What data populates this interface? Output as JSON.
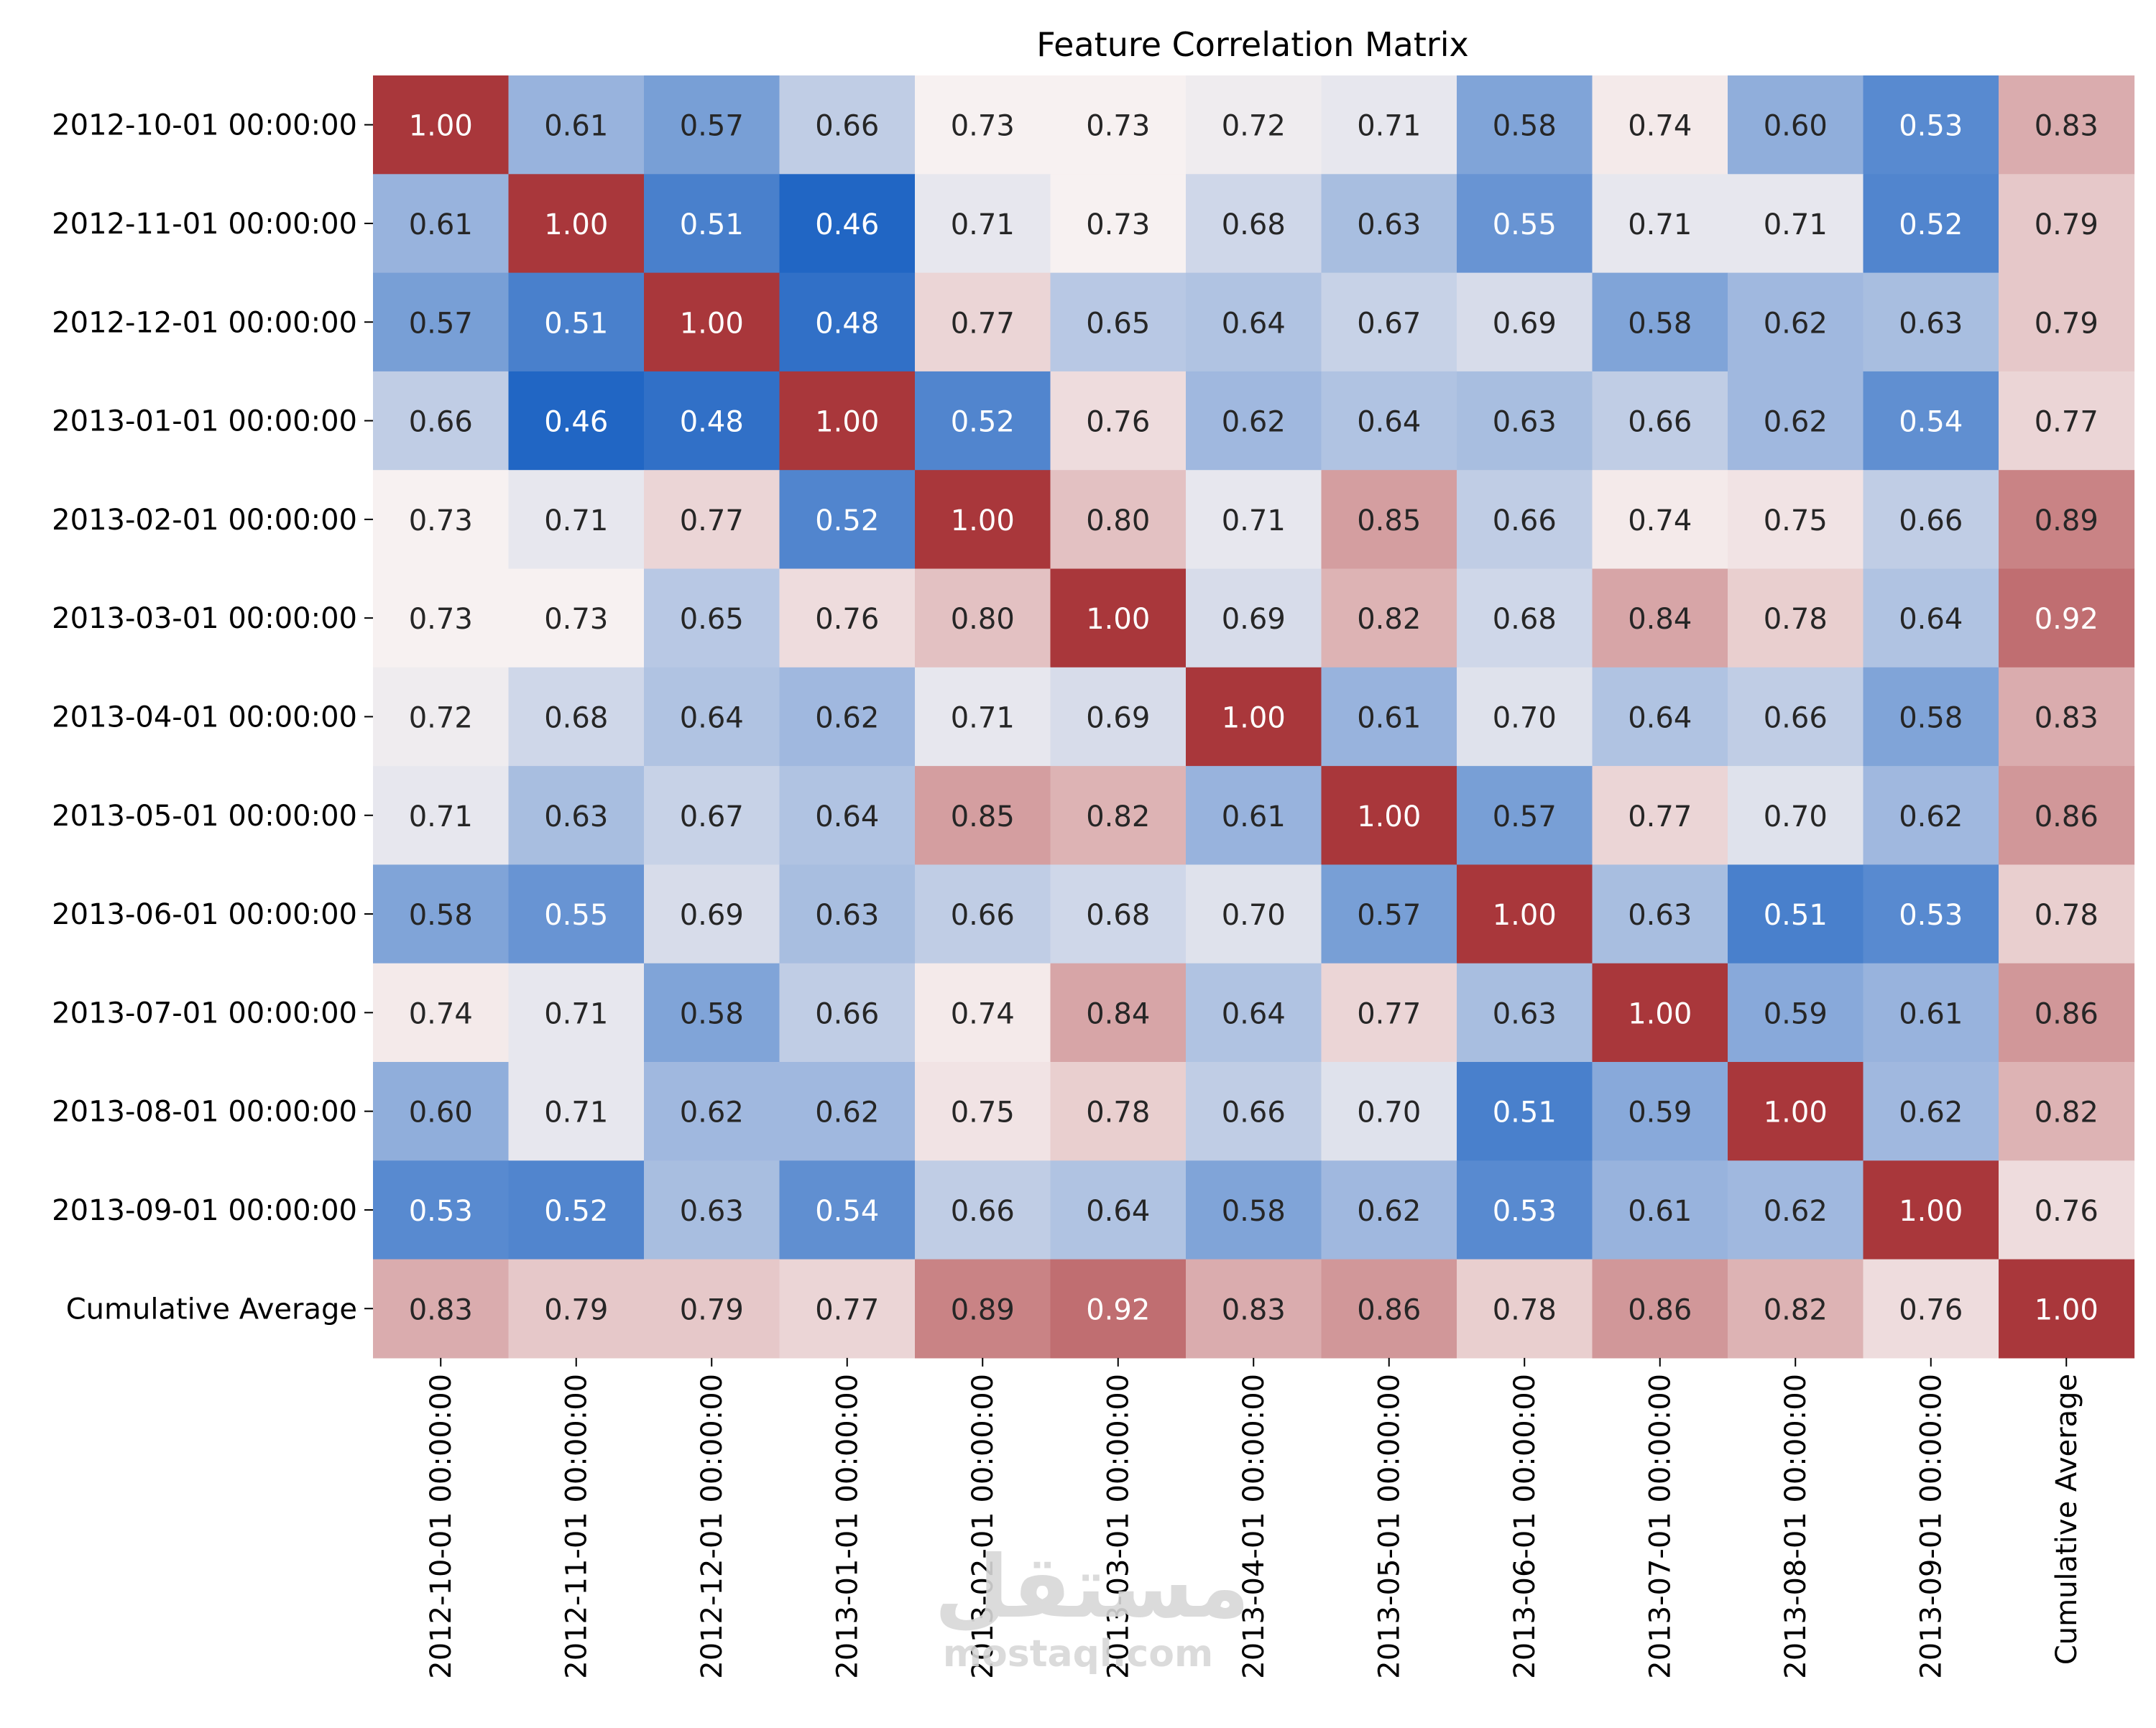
{
  "chart_data": {
    "type": "heatmap",
    "title": "Feature Correlation Matrix",
    "xlabel": "",
    "ylabel": "",
    "labels": [
      "2012-10-01 00:00:00",
      "2012-11-01 00:00:00",
      "2012-12-01 00:00:00",
      "2013-01-01 00:00:00",
      "2013-02-01 00:00:00",
      "2013-03-01 00:00:00",
      "2013-04-01 00:00:00",
      "2013-05-01 00:00:00",
      "2013-06-01 00:00:00",
      "2013-07-01 00:00:00",
      "2013-08-01 00:00:00",
      "2013-09-01 00:00:00",
      "Cumulative Average"
    ],
    "values": [
      [
        1.0,
        0.61,
        0.57,
        0.66,
        0.73,
        0.73,
        0.72,
        0.71,
        0.58,
        0.74,
        0.6,
        0.53,
        0.83
      ],
      [
        0.61,
        1.0,
        0.51,
        0.46,
        0.71,
        0.73,
        0.68,
        0.63,
        0.55,
        0.71,
        0.71,
        0.52,
        0.79
      ],
      [
        0.57,
        0.51,
        1.0,
        0.48,
        0.77,
        0.65,
        0.64,
        0.67,
        0.69,
        0.58,
        0.62,
        0.63,
        0.79
      ],
      [
        0.66,
        0.46,
        0.48,
        1.0,
        0.52,
        0.76,
        0.62,
        0.64,
        0.63,
        0.66,
        0.62,
        0.54,
        0.77
      ],
      [
        0.73,
        0.71,
        0.77,
        0.52,
        1.0,
        0.8,
        0.71,
        0.85,
        0.66,
        0.74,
        0.75,
        0.66,
        0.89
      ],
      [
        0.73,
        0.73,
        0.65,
        0.76,
        0.8,
        1.0,
        0.69,
        0.82,
        0.68,
        0.84,
        0.78,
        0.64,
        0.92
      ],
      [
        0.72,
        0.68,
        0.64,
        0.62,
        0.71,
        0.69,
        1.0,
        0.61,
        0.7,
        0.64,
        0.66,
        0.58,
        0.83
      ],
      [
        0.71,
        0.63,
        0.67,
        0.64,
        0.85,
        0.82,
        0.61,
        1.0,
        0.57,
        0.77,
        0.7,
        0.62,
        0.86
      ],
      [
        0.58,
        0.55,
        0.69,
        0.63,
        0.66,
        0.68,
        0.7,
        0.57,
        1.0,
        0.63,
        0.51,
        0.53,
        0.78
      ],
      [
        0.74,
        0.71,
        0.58,
        0.66,
        0.74,
        0.84,
        0.64,
        0.77,
        0.63,
        1.0,
        0.59,
        0.61,
        0.86
      ],
      [
        0.6,
        0.71,
        0.62,
        0.62,
        0.75,
        0.78,
        0.66,
        0.7,
        0.51,
        0.59,
        1.0,
        0.62,
        0.82
      ],
      [
        0.53,
        0.52,
        0.63,
        0.54,
        0.66,
        0.64,
        0.58,
        0.62,
        0.53,
        0.61,
        0.62,
        1.0,
        0.76
      ],
      [
        0.83,
        0.79,
        0.79,
        0.77,
        0.89,
        0.92,
        0.83,
        0.86,
        0.78,
        0.86,
        0.82,
        0.76,
        1.0
      ]
    ],
    "value_format": "0.00",
    "colormap": "vlag",
    "color_range": [
      0.46,
      1.0
    ],
    "colorbar": false,
    "grid": false,
    "legend": "none",
    "colors": {
      "low": "#2166c4",
      "mid": "#f7f1f1",
      "high": "#a9373b",
      "text_dark": "#262626",
      "text_light": "#ffffff"
    }
  },
  "watermark": {
    "logo": "مستقل",
    "text": "mostaql.com"
  }
}
